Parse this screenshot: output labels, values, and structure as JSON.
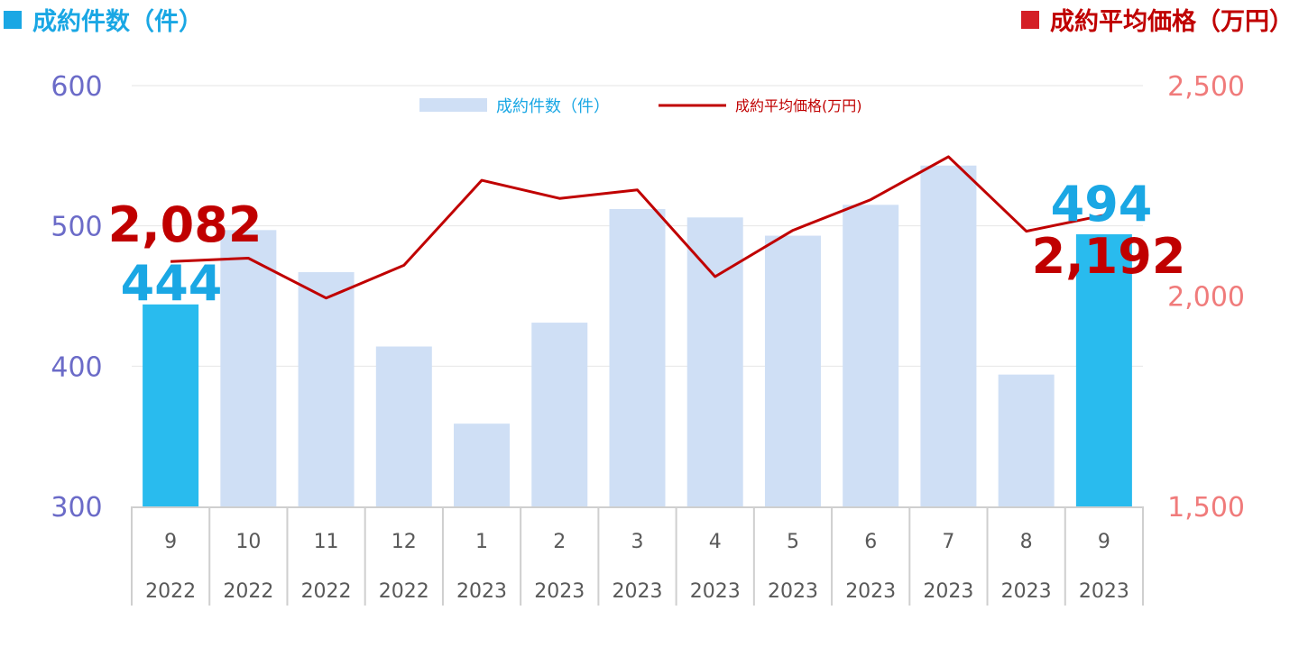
{
  "header": {
    "left_label": "成約件数（件）",
    "right_label": "成約平均価格（万円）"
  },
  "colors": {
    "highlight_bar": "#29bbee",
    "normal_bar": "#cfdff5",
    "price_line": "#c00000",
    "left_axis": "#6b6bc8",
    "right_axis": "#f07b7b",
    "count_label": "#1aa7e4",
    "price_label": "#c00000"
  },
  "chart_data": {
    "type": "bar",
    "legend": {
      "position": "top-center",
      "bar_label": "成約件数（件）",
      "line_label": "成約平均価格(万円)"
    },
    "categories": [
      {
        "month": "9",
        "year": "2022"
      },
      {
        "month": "10",
        "year": "2022"
      },
      {
        "month": "11",
        "year": "2022"
      },
      {
        "month": "12",
        "year": "2022"
      },
      {
        "month": "1",
        "year": "2023"
      },
      {
        "month": "2",
        "year": "2023"
      },
      {
        "month": "3",
        "year": "2023"
      },
      {
        "month": "4",
        "year": "2023"
      },
      {
        "month": "5",
        "year": "2023"
      },
      {
        "month": "6",
        "year": "2023"
      },
      {
        "month": "7",
        "year": "2023"
      },
      {
        "month": "8",
        "year": "2023"
      },
      {
        "month": "9",
        "year": "2023"
      }
    ],
    "series": [
      {
        "name": "成約件数（件）",
        "type": "bar",
        "axis": "left",
        "values": [
          444,
          497,
          467,
          414,
          359,
          431,
          512,
          506,
          493,
          515,
          543,
          394,
          494
        ],
        "highlight": [
          true,
          false,
          false,
          false,
          false,
          false,
          false,
          false,
          false,
          false,
          false,
          false,
          true
        ]
      },
      {
        "name": "成約平均価格(万円)",
        "type": "line",
        "axis": "right",
        "values": [
          2082,
          2090,
          1995,
          2073,
          2275,
          2232,
          2252,
          2046,
          2156,
          2229,
          2331,
          2154,
          2192
        ]
      }
    ],
    "left_axis": {
      "min": 300,
      "max": 600,
      "ticks": [
        "300",
        "400",
        "500",
        "600"
      ]
    },
    "right_axis": {
      "min": 1500,
      "max": 2500,
      "ticks": [
        "1,500",
        "2,000",
        "2,500"
      ]
    },
    "grid": true,
    "annotations": {
      "first_count": "444",
      "first_price": "2,082",
      "last_count": "494",
      "last_price": "2,192"
    }
  }
}
